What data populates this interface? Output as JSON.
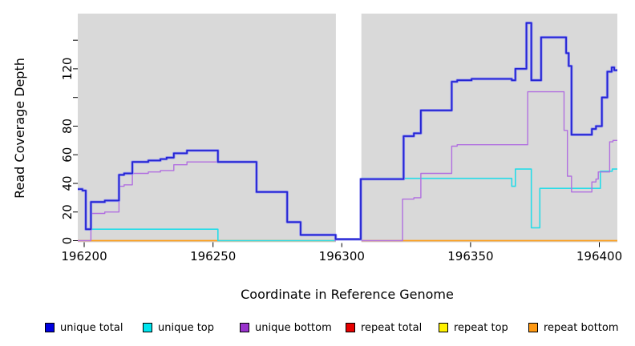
{
  "chart_data": {
    "type": "line",
    "subtype": "step-after-coverage-plot",
    "title": "",
    "xlabel": "Coordinate in Reference Genome",
    "ylabel": "Read Coverage Depth",
    "x_range": [
      196197.5,
      196407
    ],
    "y_range": [
      0,
      158
    ],
    "grid": false,
    "panel_bg": "#d9d9d9",
    "x_ticks": {
      "values": [
        196200,
        196250,
        196300,
        196350,
        196400
      ],
      "labels": [
        "196200",
        "196250",
        "196300",
        "196350",
        "196400"
      ]
    },
    "y_ticks": {
      "values": [
        0,
        20,
        40,
        60,
        80,
        100,
        120,
        140
      ],
      "labels": [
        "0",
        "20",
        "40",
        "60",
        "80",
        "",
        "120",
        ""
      ]
    },
    "gap_region": {
      "x_start": 196297.7,
      "x_end": 196307.6,
      "note": "white no-data band"
    },
    "series": [
      {
        "name": "unique total",
        "color": "#2424d2",
        "halo": "#9191f0",
        "width": 1.8,
        "points": [
          [
            196197.5,
            36
          ],
          [
            196199.3,
            35
          ],
          [
            196200.6,
            8
          ],
          [
            196202.6,
            27
          ],
          [
            196208,
            28
          ],
          [
            196213.5,
            46
          ],
          [
            196215.5,
            47
          ],
          [
            196218.7,
            55
          ],
          [
            196224.9,
            56
          ],
          [
            196229.6,
            57
          ],
          [
            196232,
            58
          ],
          [
            196234.8,
            61
          ],
          [
            196239.9,
            63
          ],
          [
            196251.9,
            55
          ],
          [
            196266.9,
            34
          ],
          [
            196278.8,
            13
          ],
          [
            196284,
            4
          ],
          [
            196297.6,
            1
          ],
          [
            196307.4,
            43
          ],
          [
            196324,
            73
          ],
          [
            196328,
            75
          ],
          [
            196330.7,
            91
          ],
          [
            196342.7,
            111
          ],
          [
            196344.8,
            112
          ],
          [
            196350.4,
            113
          ],
          [
            196366,
            112
          ],
          [
            196367.4,
            120
          ],
          [
            196371.7,
            152
          ],
          [
            196373.6,
            112
          ],
          [
            196377.4,
            142
          ],
          [
            196387.1,
            131
          ],
          [
            196388.1,
            122
          ],
          [
            196389.2,
            74
          ],
          [
            196397.1,
            78
          ],
          [
            196398.7,
            80
          ],
          [
            196401,
            100
          ],
          [
            196403.1,
            118
          ],
          [
            196404.8,
            121
          ],
          [
            196405.8,
            119
          ],
          [
            196407,
            119
          ]
        ]
      },
      {
        "name": "unique top",
        "color": "#26dce8",
        "width": 1.6,
        "points": [
          [
            196197.5,
            36
          ],
          [
            196199.3,
            35
          ],
          [
            196200.6,
            8
          ],
          [
            196251.9,
            0
          ],
          [
            196307.4,
            43.5
          ],
          [
            196366,
            38
          ],
          [
            196367.4,
            50
          ],
          [
            196373.6,
            9
          ],
          [
            196376.9,
            36.5
          ],
          [
            196400.4,
            48.5
          ],
          [
            196405,
            50
          ],
          [
            196407,
            50
          ]
        ]
      },
      {
        "name": "unique bottom",
        "color": "#b16fe0",
        "width": 1.4,
        "points": [
          [
            196197.5,
            0
          ],
          [
            196202.6,
            19
          ],
          [
            196208,
            20
          ],
          [
            196213.5,
            38
          ],
          [
            196215.5,
            39
          ],
          [
            196218.7,
            47
          ],
          [
            196224.9,
            48
          ],
          [
            196229.6,
            49
          ],
          [
            196234.8,
            53
          ],
          [
            196239.9,
            55
          ],
          [
            196266.9,
            34
          ],
          [
            196278.8,
            13
          ],
          [
            196284,
            4
          ],
          [
            196297.4,
            0
          ],
          [
            196323.6,
            29
          ],
          [
            196328,
            30
          ],
          [
            196330.7,
            47
          ],
          [
            196342.7,
            66
          ],
          [
            196344.8,
            67
          ],
          [
            196372.2,
            104
          ],
          [
            196386.3,
            77
          ],
          [
            196387.6,
            45
          ],
          [
            196389.2,
            34
          ],
          [
            196397.1,
            41
          ],
          [
            196398.7,
            43
          ],
          [
            196399.6,
            48
          ],
          [
            196404,
            69
          ],
          [
            196405.3,
            70
          ],
          [
            196407,
            70
          ]
        ]
      },
      {
        "name": "repeat total",
        "color": "#e61717",
        "width": 1.3,
        "points": [
          [
            196197.5,
            0
          ],
          [
            196407,
            0
          ]
        ]
      },
      {
        "name": "repeat top",
        "color": "#f5f20f",
        "width": 1.3,
        "points": [
          [
            196197.5,
            0
          ],
          [
            196407,
            0
          ]
        ]
      },
      {
        "name": "repeat bottom",
        "color": "#ff9d14",
        "width": 1.6,
        "points": [
          [
            196197.5,
            0
          ],
          [
            196407,
            0
          ]
        ]
      }
    ],
    "legend": {
      "position": "bottom",
      "items": [
        {
          "label": "unique total",
          "swatch": "#0000e0"
        },
        {
          "label": "unique top",
          "swatch": "#00e5ee"
        },
        {
          "label": "unique bottom",
          "swatch": "#9932cc"
        },
        {
          "label": "repeat total",
          "swatch": "#e60000"
        },
        {
          "label": "repeat top",
          "swatch": "#fff200"
        },
        {
          "label": "repeat bottom",
          "swatch": "#ff9912"
        }
      ]
    }
  }
}
